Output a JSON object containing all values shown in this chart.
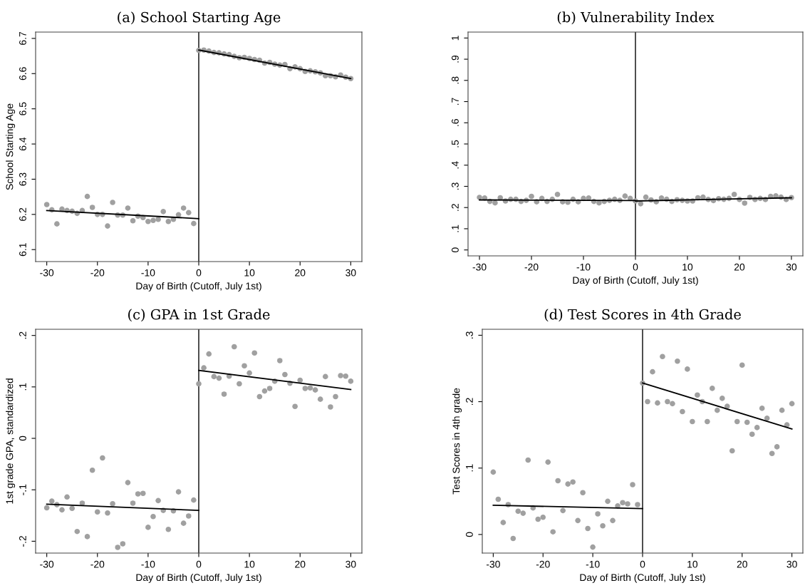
{
  "chart_data": [
    {
      "type": "scatter",
      "title": "(a) School Starting Age",
      "xlabel": "Day of Birth (Cutoff, July 1st)",
      "ylabel": "School Starting Age",
      "xlim": [
        -32.2,
        32.2
      ],
      "xticks": [
        {
          "value": -30,
          "label": "-30"
        },
        {
          "value": -20,
          "label": "-20"
        },
        {
          "value": -10,
          "label": "-10"
        },
        0,
        10,
        20,
        30
      ],
      "ylim": [
        6.066,
        6.718
      ],
      "yticks": [
        6.1,
        6.2,
        6.3,
        6.4,
        6.5,
        6.6,
        6.7
      ],
      "grid": false,
      "legend": false,
      "marker": "circle",
      "ref_lines": [
        {
          "axis": "x",
          "value": 0,
          "color": "#000000"
        }
      ],
      "series": [
        {
          "color": "#a0a0a0",
          "x": [
            -30,
            -29,
            -28,
            -27,
            -26,
            -25,
            -24,
            -23,
            -22,
            -21,
            -20,
            -19,
            -18,
            -17,
            -16,
            -15,
            -14,
            -13,
            -12,
            -11,
            -10,
            -9,
            -8,
            -7,
            -6,
            -5,
            -4,
            -3,
            -2,
            -1
          ],
          "values": [
            6.228,
            6.213,
            6.173,
            6.215,
            6.211,
            6.209,
            6.203,
            6.211,
            6.251,
            6.22,
            6.2,
            6.2,
            6.167,
            6.234,
            6.198,
            6.198,
            6.218,
            6.182,
            6.195,
            6.191,
            6.18,
            6.183,
            6.186,
            6.208,
            6.18,
            6.186,
            6.199,
            6.218,
            6.205,
            6.174
          ]
        },
        {
          "color": "#a0a0a0",
          "x": [
            0,
            1,
            2,
            3,
            4,
            5,
            6,
            7,
            8,
            9,
            10,
            11,
            12,
            13,
            14,
            15,
            16,
            17,
            18,
            19,
            20,
            21,
            22,
            23,
            24,
            25,
            26,
            27,
            28,
            29,
            30
          ],
          "values": [
            6.666,
            6.667,
            6.664,
            6.66,
            6.659,
            6.656,
            6.654,
            6.649,
            6.645,
            6.646,
            6.643,
            6.64,
            6.638,
            6.63,
            6.632,
            6.627,
            6.624,
            6.626,
            6.614,
            6.619,
            6.614,
            6.606,
            6.608,
            6.605,
            6.602,
            6.594,
            6.594,
            6.591,
            6.596,
            6.59,
            6.586
          ]
        },
        {
          "type": "line",
          "marker": "none",
          "color": "#000000",
          "x": [
            -30,
            0
          ],
          "values": [
            6.211,
            6.188
          ]
        },
        {
          "type": "line",
          "marker": "none",
          "color": "#000000",
          "x": [
            0,
            30
          ],
          "values": [
            6.667,
            6.586
          ]
        }
      ]
    },
    {
      "type": "scatter",
      "title": "(b) Vulnerability Index",
      "xlabel": "Day of Birth (Cutoff, July 1st)",
      "xlim": [
        -32.2,
        32.2
      ],
      "xticks": [
        {
          "value": -30,
          "label": "-30"
        },
        {
          "value": -20,
          "label": "-20"
        },
        {
          "value": -10,
          "label": "-10"
        },
        0,
        10,
        20,
        30
      ],
      "ylim": [
        -0.028,
        1.028
      ],
      "yticks": [
        0,
        {
          "value": 0.1,
          "label": ".1"
        },
        {
          "value": 0.2,
          "label": ".2"
        },
        {
          "value": 0.3,
          "label": ".3"
        },
        {
          "value": 0.4,
          "label": ".4"
        },
        {
          "value": 0.5,
          "label": ".5"
        },
        {
          "value": 0.6,
          "label": ".6"
        },
        {
          "value": 0.7,
          "label": ".7"
        },
        {
          "value": 0.8,
          "label": ".8"
        },
        {
          "value": 0.9,
          "label": ".9"
        },
        1
      ],
      "grid": false,
      "legend": false,
      "marker": "circle",
      "ref_lines": [
        {
          "axis": "x",
          "value": 0,
          "color": "#000000"
        }
      ],
      "series": [
        {
          "color": "#a0a0a0",
          "x": [
            -30,
            -29,
            -28,
            -27,
            -26,
            -25,
            -24,
            -23,
            -22,
            -21,
            -20,
            -19,
            -18,
            -17,
            -16,
            -15,
            -14,
            -13,
            -12,
            -11,
            -10,
            -9,
            -8,
            -7,
            -6,
            -5,
            -4,
            -3,
            -2,
            -1
          ],
          "values": [
            0.248,
            0.245,
            0.229,
            0.222,
            0.246,
            0.231,
            0.239,
            0.239,
            0.229,
            0.234,
            0.253,
            0.227,
            0.243,
            0.229,
            0.239,
            0.262,
            0.227,
            0.225,
            0.239,
            0.227,
            0.243,
            0.245,
            0.229,
            0.222,
            0.229,
            0.234,
            0.239,
            0.234,
            0.254,
            0.243
          ]
        },
        {
          "color": "#a0a0a0",
          "x": [
            0,
            1,
            2,
            3,
            4,
            5,
            6,
            7,
            8,
            9,
            10,
            11,
            12,
            13,
            14,
            15,
            16,
            17,
            18,
            19,
            20,
            21,
            22,
            23,
            24,
            25,
            26,
            27,
            28,
            29,
            30
          ],
          "values": [
            0.231,
            0.218,
            0.249,
            0.236,
            0.227,
            0.245,
            0.239,
            0.229,
            0.237,
            0.234,
            0.231,
            0.231,
            0.246,
            0.249,
            0.238,
            0.233,
            0.242,
            0.239,
            0.243,
            0.262,
            0.238,
            0.221,
            0.248,
            0.238,
            0.243,
            0.238,
            0.253,
            0.255,
            0.249,
            0.238,
            0.247
          ]
        },
        {
          "type": "line",
          "marker": "none",
          "color": "#000000",
          "x": [
            -30,
            0,
            0,
            30
          ],
          "values": [
            0.236,
            0.233,
            0.231,
            0.246
          ]
        }
      ]
    },
    {
      "type": "scatter",
      "title": "(c) GPA in 1st Grade",
      "xlabel": "Day of Birth (Cutoff, July 1st)",
      "ylabel": "1st grade GPA, standardized",
      "xlim": [
        -32.2,
        32.2
      ],
      "xticks": [
        {
          "value": -30,
          "label": "-30"
        },
        {
          "value": -20,
          "label": "-20"
        },
        {
          "value": -10,
          "label": "-10"
        },
        0,
        10,
        20,
        30
      ],
      "ylim": [
        -0.223,
        0.212
      ],
      "yticks": [
        {
          "value": -0.2,
          "label": "-.2"
        },
        {
          "value": -0.1,
          "label": "-.1"
        },
        0,
        {
          "value": 0.1,
          "label": ".1"
        },
        {
          "value": 0.2,
          "label": ".2"
        }
      ],
      "grid": false,
      "legend": false,
      "marker": "circle",
      "ref_lines": [
        {
          "axis": "x",
          "value": 0,
          "color": "#000000"
        }
      ],
      "series": [
        {
          "color": "#a0a0a0",
          "x": [
            -30,
            -29,
            -28,
            -27,
            -26,
            -25,
            -24,
            -23,
            -22,
            -21,
            -20,
            -19,
            -18,
            -17,
            -16,
            -15,
            -14,
            -13,
            -12,
            -11,
            -10,
            -9,
            -8,
            -7,
            -6,
            -5,
            -4,
            -3,
            -2,
            -1
          ],
          "values": [
            -0.135,
            -0.122,
            -0.129,
            -0.139,
            -0.114,
            -0.136,
            -0.181,
            -0.126,
            -0.191,
            -0.062,
            -0.143,
            -0.038,
            -0.145,
            -0.127,
            -0.212,
            -0.205,
            -0.086,
            -0.126,
            -0.108,
            -0.107,
            -0.173,
            -0.152,
            -0.121,
            -0.14,
            -0.177,
            -0.141,
            -0.104,
            -0.165,
            -0.151,
            -0.12
          ]
        },
        {
          "color": "#a0a0a0",
          "x": [
            0,
            1,
            2,
            3,
            4,
            5,
            6,
            7,
            8,
            9,
            10,
            11,
            12,
            13,
            14,
            15,
            16,
            17,
            18,
            19,
            20,
            21,
            22,
            23,
            24,
            25,
            26,
            27,
            28,
            29,
            30
          ],
          "values": [
            0.106,
            0.137,
            0.164,
            0.12,
            0.117,
            0.086,
            0.121,
            0.178,
            0.106,
            0.141,
            0.127,
            0.166,
            0.081,
            0.092,
            0.097,
            0.111,
            0.151,
            0.124,
            0.107,
            0.062,
            0.113,
            0.097,
            0.098,
            0.094,
            0.076,
            0.12,
            0.061,
            0.081,
            0.122,
            0.121,
            0.111
          ]
        },
        {
          "type": "line",
          "marker": "none",
          "color": "#000000",
          "x": [
            -30,
            0
          ],
          "values": [
            -0.128,
            -0.14
          ]
        },
        {
          "type": "line",
          "marker": "none",
          "color": "#000000",
          "x": [
            0,
            30
          ],
          "values": [
            0.132,
            0.095
          ]
        }
      ]
    },
    {
      "type": "scatter",
      "title": "(d) Test Scores in 4th Grade",
      "xlabel": "Day of Birth (Cutoff, July 1st)",
      "ylabel": "Test Scores in 4th grade",
      "xlim": [
        -32.2,
        32.2
      ],
      "xticks": [
        {
          "value": -30,
          "label": "-30"
        },
        {
          "value": -20,
          "label": "-20"
        },
        {
          "value": -10,
          "label": "-10"
        },
        0,
        10,
        20,
        30
      ],
      "ylim": [
        -0.028,
        0.309
      ],
      "yticks": [
        0,
        {
          "value": 0.1,
          "label": ".1"
        },
        {
          "value": 0.2,
          "label": ".2"
        },
        {
          "value": 0.3,
          "label": ".3"
        }
      ],
      "grid": false,
      "legend": false,
      "marker": "circle",
      "ref_lines": [
        {
          "axis": "x",
          "value": 0,
          "color": "#000000"
        }
      ],
      "series": [
        {
          "color": "#a0a0a0",
          "x": [
            -30,
            -29,
            -28,
            -27,
            -26,
            -25,
            -24,
            -23,
            -22,
            -21,
            -20,
            -19,
            -18,
            -17,
            -16,
            -15,
            -14,
            -13,
            -12,
            -11,
            -10,
            -9,
            -8,
            -7,
            -6,
            -5,
            -4,
            -3,
            -2,
            -1
          ],
          "values": [
            0.094,
            0.053,
            0.018,
            0.045,
            -0.006,
            0.035,
            0.032,
            0.112,
            0.04,
            0.023,
            0.026,
            0.109,
            0.004,
            0.081,
            0.036,
            0.076,
            0.079,
            0.021,
            0.063,
            0.009,
            -0.019,
            0.031,
            0.013,
            0.05,
            0.021,
            0.043,
            0.048,
            0.046,
            0.075,
            0.045
          ]
        },
        {
          "color": "#a0a0a0",
          "x": [
            0,
            1,
            2,
            3,
            4,
            5,
            6,
            7,
            8,
            9,
            10,
            11,
            12,
            13,
            14,
            15,
            16,
            17,
            18,
            19,
            20,
            21,
            22,
            23,
            24,
            25,
            26,
            27,
            28,
            29,
            30
          ],
          "values": [
            0.228,
            0.2,
            0.245,
            0.198,
            0.268,
            0.2,
            0.197,
            0.261,
            0.185,
            0.249,
            0.17,
            0.21,
            0.2,
            0.17,
            0.22,
            0.187,
            0.205,
            0.193,
            0.126,
            0.17,
            0.255,
            0.169,
            0.151,
            0.161,
            0.19,
            0.175,
            0.122,
            0.132,
            0.187,
            0.165,
            0.197
          ]
        },
        {
          "type": "line",
          "marker": "none",
          "color": "#000000",
          "x": [
            -30,
            0
          ],
          "values": [
            0.044,
            0.039
          ]
        },
        {
          "type": "line",
          "marker": "none",
          "color": "#000000",
          "x": [
            0,
            30
          ],
          "values": [
            0.228,
            0.159
          ]
        }
      ]
    }
  ]
}
